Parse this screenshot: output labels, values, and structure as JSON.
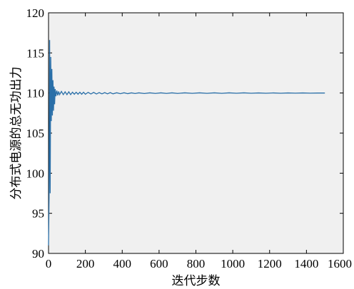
{
  "chart_data": {
    "type": "line",
    "title": "",
    "xlabel": "迭代步数",
    "ylabel": "分布式电源的总无功出力",
    "xlim": [
      0,
      1600
    ],
    "ylim": [
      90,
      120
    ],
    "xticks": [
      "0",
      "200",
      "400",
      "600",
      "800",
      "1000",
      "1200",
      "1400",
      "1600"
    ],
    "yticks": [
      "90",
      "95",
      "100",
      "105",
      "110",
      "115",
      "120"
    ],
    "grid": false,
    "legend": "none",
    "colors": {
      "line": "#2a6fa8",
      "plot_bg": "#f0f0f0",
      "axis": "#000000"
    },
    "series": [
      {
        "x": [
          0,
          3,
          6,
          9,
          12,
          15,
          18,
          21,
          24,
          27,
          30,
          33,
          36,
          40,
          45,
          50,
          55,
          60,
          70,
          80,
          90,
          100,
          110,
          120,
          130,
          140,
          150,
          160,
          170,
          180,
          190,
          200,
          215,
          230,
          245,
          260,
          275,
          290,
          305,
          320,
          335,
          350,
          370,
          390,
          410,
          430,
          450,
          470,
          490,
          520,
          550,
          580,
          610,
          640,
          670,
          700,
          740,
          780,
          820,
          860,
          900,
          940,
          980,
          1020,
          1060,
          1100,
          1140,
          1180,
          1220,
          1260,
          1300,
          1340,
          1380,
          1420,
          1460,
          1500
        ],
        "y": [
          91.0,
          97.0,
          116.6,
          97.5,
          114.5,
          106.5,
          113.0,
          107.2,
          111.6,
          107.8,
          110.8,
          108.6,
          110.5,
          109.6,
          110.3,
          109.7,
          110.2,
          109.8,
          110.2,
          109.8,
          110.15,
          109.8,
          110.15,
          109.8,
          110.1,
          109.85,
          110.1,
          109.85,
          110.1,
          109.85,
          110.1,
          109.85,
          110.08,
          109.88,
          110.08,
          109.88,
          110.05,
          109.9,
          110.05,
          109.9,
          110.05,
          109.9,
          110.03,
          109.92,
          110.03,
          109.92,
          110.02,
          109.94,
          110.02,
          109.94,
          110.02,
          109.95,
          110.02,
          109.95,
          110.02,
          109.95,
          110.02,
          109.96,
          110.02,
          109.96,
          110.02,
          109.96,
          110.02,
          109.97,
          110.02,
          109.97,
          110.01,
          109.97,
          110.01,
          109.97,
          110.01,
          109.98,
          110.01,
          109.98,
          110.0,
          110.0
        ]
      }
    ]
  }
}
